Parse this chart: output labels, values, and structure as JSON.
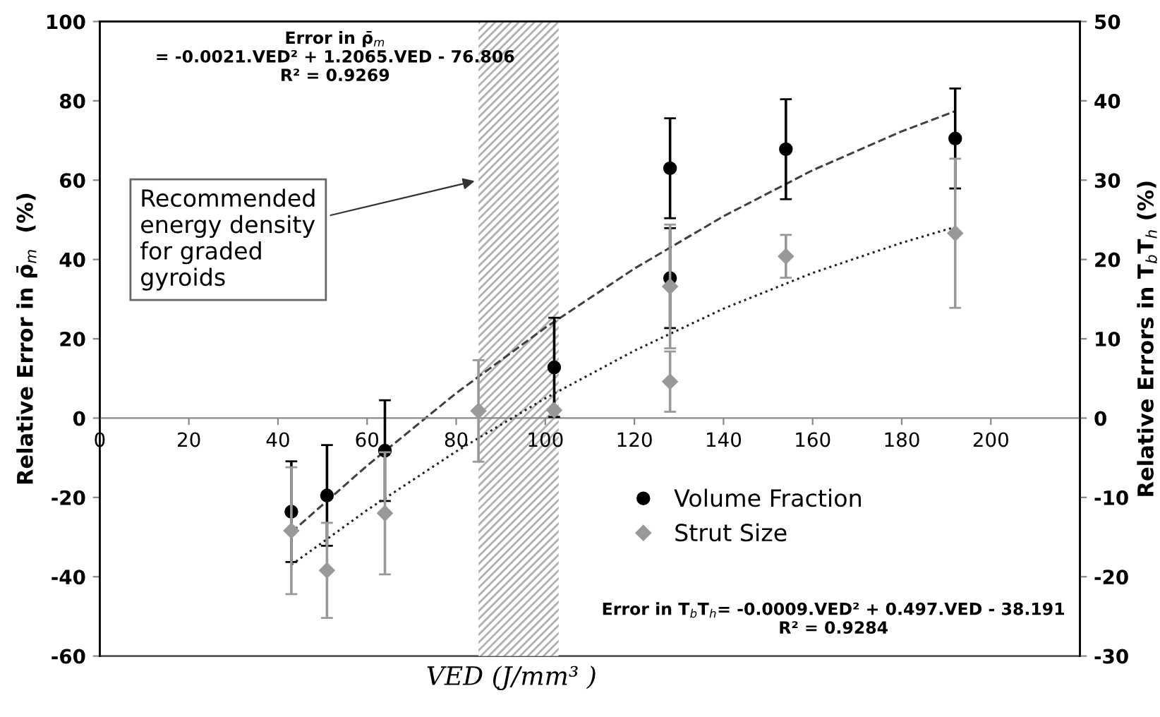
{
  "chart_data": {
    "type": "scatter",
    "xlabel": "VED (J/mm³ )",
    "ylabel": "Relative Error in ρ̄$_{m}$  (%)",
    "y2label": "Relative Errors in T$_{b}$T$_{h}$ (%)",
    "xlim": [
      0,
      220
    ],
    "xticks": [
      0,
      20,
      40,
      60,
      80,
      100,
      120,
      140,
      160,
      180,
      200
    ],
    "ylim": [
      -60,
      100
    ],
    "yticks": [
      -60,
      -40,
      -20,
      0,
      20,
      40,
      60,
      80,
      100
    ],
    "y2lim": [
      -30,
      50
    ],
    "y2ticks": [
      -30,
      -20,
      -10,
      0,
      10,
      20,
      30,
      40,
      50
    ],
    "grid": false,
    "legend": "bottom right",
    "series": [
      {
        "name": "Volume Fraction",
        "marker": "circle",
        "color": "#000000",
        "x": [
          43,
          51,
          64,
          102,
          128,
          128,
          154,
          192
        ],
        "values": [
          -23.6,
          -19.5,
          -8.2,
          12.8,
          63,
          35.3,
          67.8,
          70.5
        ],
        "errors": [
          12.7,
          12.7,
          12.7,
          12.5,
          12.6,
          12.6,
          12.6,
          12.6
        ]
      },
      {
        "name": "Strut Size",
        "marker": "diamond",
        "color": "#999999",
        "axis": "y2",
        "x": [
          43,
          51,
          64,
          85,
          102,
          128,
          128,
          154,
          192
        ],
        "values": [
          -14.2,
          -19.2,
          -12.0,
          0.9,
          1.0,
          16.6,
          4.6,
          20.4,
          23.3
        ],
        "errors": [
          8,
          6,
          7.7,
          6.4,
          null,
          7.8,
          3.8,
          2.7,
          9.4
        ]
      },
      {
        "type": "line",
        "line_style": "dashed",
        "color": "#404040",
        "x": [
          43,
          60,
          80,
          100,
          120,
          140,
          160,
          180,
          192
        ],
        "values": [
          -28.8,
          -12.0,
          6.3,
          22.8,
          37.7,
          50.9,
          62.5,
          72.3,
          77.4
        ]
      },
      {
        "type": "line",
        "line_style": "dotted",
        "color": "#202020",
        "axis": "y2",
        "x": [
          43,
          60,
          80,
          100,
          120,
          140,
          160,
          180,
          192
        ],
        "values": [
          -18.5,
          -11.6,
          -4.2,
          2.5,
          8.5,
          13.8,
          18.3,
          22.1,
          24.1
        ]
      }
    ],
    "bands": [
      {
        "axis": "x",
        "from": 85,
        "to": 103,
        "color": "#b0b0b0",
        "label": "Recommended\nenergy density\nfor graded\ngyroids"
      }
    ],
    "annotations": [
      "Error in ρ̄$_{m}$\n= -0.0021.VED² + 1.2065.VED - 76.806\nR² = 0.9269",
      "Error in T$_{b}$T$_{h}$= -0.0009.VED² + 0.497.VED - 38.191\nR² = 0.9284"
    ]
  }
}
